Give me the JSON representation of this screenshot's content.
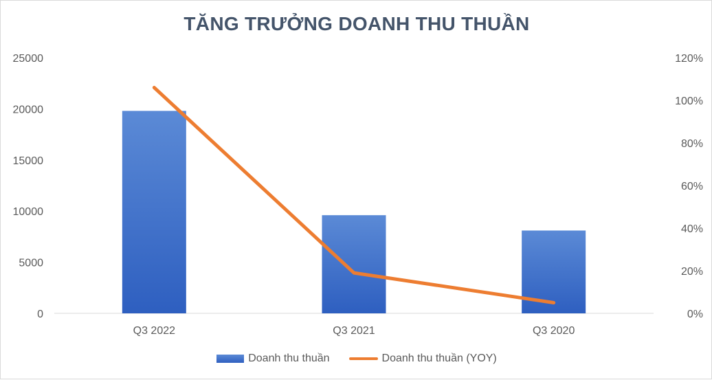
{
  "chart_data": {
    "type": "bar",
    "title": "TĂNG TRƯỞNG DOANH THU THUẦN",
    "categories": [
      "Q3 2022",
      "Q3 2021",
      "Q3 2020"
    ],
    "series": [
      {
        "name": "Doanh thu thuần",
        "type": "bar",
        "axis": "left",
        "values": [
          19800,
          9600,
          8100
        ]
      },
      {
        "name": "Doanh thu thuần (YOY)",
        "type": "line",
        "axis": "right",
        "values": [
          1.06,
          0.19,
          0.05
        ]
      }
    ],
    "y_left": {
      "ylim": [
        0,
        25000
      ],
      "ticks": [
        "0",
        "5000",
        "10000",
        "15000",
        "20000",
        "25000"
      ]
    },
    "y_right": {
      "ylim": [
        0,
        1.2
      ],
      "ticks": [
        "0%",
        "20%",
        "40%",
        "60%",
        "80%",
        "100%",
        "120%"
      ]
    },
    "grid": false,
    "legend_position": "bottom",
    "colors": {
      "bar_top": "#5b8ad6",
      "bar_bottom": "#2e5fc0",
      "line": "#ed7d31",
      "title": "#44546a",
      "text": "#595959",
      "axis": "#d9d9d9"
    }
  }
}
